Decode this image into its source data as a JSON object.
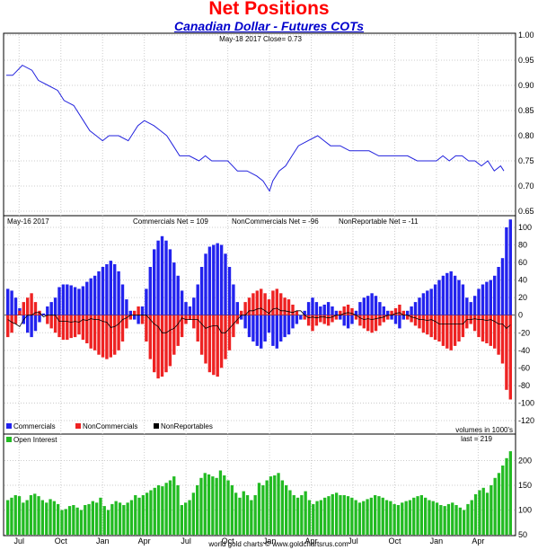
{
  "header": {
    "title": "Net Positions",
    "subtitle": "Canadian Dollar - Futures COTs"
  },
  "footer": {
    "credit": "world gold charts © www.goldchartsrus.com"
  },
  "colors": {
    "price_line": "#2222dd",
    "commercials": "#2222ee",
    "noncommercials": "#ee2222",
    "nonreportables": "#000000",
    "open_interest": "#22bb22",
    "title": "#ff0000",
    "subtitle": "#0000cc"
  },
  "chart_data": [
    {
      "type": "line",
      "panel": "price",
      "annotation": "May-18  2017   Close= 0.73",
      "y_ticks": [
        "1.00",
        "0.95",
        "0.90",
        "0.85",
        "0.80",
        "0.75",
        "0.70",
        "0.65"
      ],
      "ylim": [
        0.65,
        1.0
      ],
      "x_ticks": [
        "Jul",
        "Oct",
        "Jan",
        "Apr",
        "Jul",
        "Oct",
        "Jan",
        "Apr",
        "Jul",
        "Oct",
        "Jan",
        "Apr"
      ],
      "x_tick_weeks": [
        4,
        17,
        30,
        43,
        56,
        69,
        82,
        95,
        108,
        121,
        134,
        147
      ],
      "series": [
        {
          "weeks": [
            0,
            2,
            5,
            8,
            10,
            13,
            16,
            18,
            21,
            24,
            26,
            28,
            30,
            32,
            35,
            38,
            41,
            43,
            46,
            48,
            50,
            52,
            54,
            57,
            60,
            62,
            64,
            66,
            69,
            72,
            75,
            78,
            80,
            82,
            83,
            85,
            87,
            89,
            91,
            94,
            97,
            99,
            101,
            104,
            107,
            110,
            113,
            116,
            119,
            122,
            125,
            128,
            131,
            134,
            136,
            138,
            140,
            142,
            144,
            146,
            148,
            150,
            152,
            154,
            155
          ],
          "values": [
            0.92,
            0.92,
            0.94,
            0.93,
            0.91,
            0.9,
            0.89,
            0.87,
            0.86,
            0.83,
            0.81,
            0.8,
            0.79,
            0.8,
            0.8,
            0.79,
            0.82,
            0.83,
            0.82,
            0.81,
            0.8,
            0.78,
            0.76,
            0.76,
            0.75,
            0.76,
            0.75,
            0.75,
            0.75,
            0.73,
            0.73,
            0.72,
            0.71,
            0.69,
            0.71,
            0.73,
            0.74,
            0.76,
            0.78,
            0.79,
            0.8,
            0.79,
            0.78,
            0.78,
            0.77,
            0.77,
            0.77,
            0.76,
            0.76,
            0.76,
            0.76,
            0.75,
            0.75,
            0.75,
            0.76,
            0.75,
            0.76,
            0.76,
            0.75,
            0.75,
            0.74,
            0.75,
            0.73,
            0.74,
            0.73
          ]
        }
      ]
    },
    {
      "type": "bar",
      "panel": "net_positions",
      "left_label": "May-16  2017",
      "stats": [
        "Commercials Net = 109",
        "NonCommercials Net = -96",
        "NonReportable Net = -11"
      ],
      "y_ticks": [
        "100",
        "80",
        "60",
        "40",
        "20",
        "0",
        "-20",
        "-40",
        "-60",
        "-80",
        "-100",
        "-120"
      ],
      "ylim": [
        -120,
        100
      ],
      "legend": [
        "Commercials",
        "NonCommercials",
        "NonReportables"
      ],
      "volume_note": "volumes in 1000's",
      "series": [
        {
          "name": "Commercials",
          "values": [
            30,
            28,
            20,
            8,
            -10,
            -20,
            -25,
            -18,
            -8,
            2,
            10,
            15,
            20,
            32,
            35,
            35,
            34,
            32,
            30,
            33,
            38,
            42,
            45,
            50,
            55,
            58,
            62,
            58,
            50,
            35,
            18,
            5,
            -5,
            -10,
            10,
            30,
            55,
            75,
            85,
            90,
            85,
            75,
            60,
            45,
            28,
            15,
            10,
            20,
            35,
            55,
            70,
            78,
            80,
            82,
            80,
            70,
            55,
            35,
            15,
            -5,
            -15,
            -25,
            -30,
            -35,
            -38,
            -30,
            -20,
            -35,
            -38,
            -30,
            -25,
            -22,
            -15,
            -10,
            -5,
            5,
            15,
            20,
            15,
            10,
            12,
            15,
            10,
            5,
            -5,
            -12,
            -15,
            -10,
            5,
            15,
            20,
            22,
            25,
            22,
            15,
            10,
            5,
            -5,
            -10,
            -15,
            -5,
            5,
            10,
            15,
            20,
            25,
            28,
            30,
            35,
            40,
            45,
            48,
            50,
            45,
            40,
            35,
            20,
            15,
            22,
            30,
            35,
            38,
            40,
            45,
            55,
            65,
            100,
            109
          ]
        },
        {
          "name": "NonCommercials",
          "values": [
            -25,
            -20,
            -10,
            5,
            15,
            20,
            25,
            15,
            5,
            0,
            -10,
            -15,
            -20,
            -25,
            -28,
            -28,
            -26,
            -25,
            -22,
            -28,
            -32,
            -38,
            -40,
            -45,
            -48,
            -50,
            -48,
            -45,
            -40,
            -30,
            -15,
            -5,
            5,
            10,
            -10,
            -30,
            -50,
            -65,
            -72,
            -70,
            -65,
            -58,
            -45,
            -35,
            -25,
            -10,
            -5,
            -15,
            -30,
            -45,
            -55,
            -65,
            -68,
            -70,
            -60,
            -50,
            -40,
            -25,
            -10,
            5,
            15,
            20,
            25,
            28,
            30,
            25,
            18,
            28,
            30,
            25,
            20,
            18,
            12,
            5,
            0,
            -5,
            -12,
            -18,
            -12,
            -8,
            -10,
            -12,
            -8,
            -5,
            5,
            10,
            12,
            8,
            -5,
            -12,
            -15,
            -18,
            -20,
            -18,
            -12,
            -8,
            -5,
            5,
            8,
            12,
            5,
            -5,
            -8,
            -12,
            -15,
            -20,
            -22,
            -25,
            -28,
            -30,
            -35,
            -38,
            -40,
            -35,
            -30,
            -25,
            -15,
            -10,
            -18,
            -25,
            -30,
            -32,
            -35,
            -38,
            -45,
            -55,
            -85,
            -96
          ]
        },
        {
          "name": "NonReportables",
          "values": [
            -5,
            -8,
            -10,
            -13,
            -5,
            0,
            0,
            3,
            3,
            -2,
            0,
            0,
            0,
            -7,
            -7,
            -7,
            -8,
            -7,
            -8,
            -5,
            -6,
            -4,
            -5,
            -5,
            -7,
            -8,
            -14,
            -13,
            -10,
            -5,
            -3,
            0,
            0,
            0,
            0,
            0,
            -5,
            -10,
            -13,
            -20,
            -20,
            -17,
            -15,
            -10,
            -3,
            -5,
            -5,
            -5,
            -5,
            -10,
            -15,
            -13,
            -12,
            -12,
            -20,
            -20,
            -15,
            -10,
            -5,
            0,
            0,
            5,
            5,
            7,
            8,
            5,
            2,
            7,
            8,
            5,
            5,
            4,
            3,
            5,
            5,
            0,
            -3,
            -2,
            -3,
            -2,
            -2,
            -3,
            -2,
            0,
            0,
            2,
            3,
            2,
            0,
            -3,
            -5,
            -4,
            -5,
            -4,
            -3,
            -2,
            0,
            0,
            2,
            3,
            0,
            0,
            -2,
            -3,
            -5,
            -5,
            -6,
            -5,
            -7,
            -10,
            -10,
            -10,
            -10,
            -10,
            -10,
            -10,
            -5,
            -5,
            -4,
            -5,
            -5,
            -6,
            -5,
            -7,
            -10,
            -10,
            -15,
            -11
          ]
        }
      ]
    },
    {
      "type": "bar",
      "panel": "open_interest",
      "legend": [
        "Open Interest"
      ],
      "last_note": "last = 219",
      "y_ticks": [
        "200",
        "150",
        "100",
        "50"
      ],
      "ylim": [
        50,
        230
      ],
      "x_ticks": [
        "Jul",
        "Oct",
        "Jan",
        "Apr",
        "Jul",
        "Oct",
        "Jan",
        "Apr",
        "Jul",
        "Oct",
        "Jan",
        "Apr"
      ],
      "series": [
        {
          "name": "Open Interest",
          "values": [
            120,
            125,
            130,
            128,
            115,
            120,
            130,
            133,
            128,
            120,
            115,
            122,
            118,
            112,
            100,
            102,
            108,
            110,
            105,
            100,
            110,
            112,
            118,
            115,
            125,
            108,
            100,
            112,
            118,
            115,
            110,
            115,
            120,
            130,
            125,
            130,
            135,
            140,
            145,
            150,
            148,
            155,
            160,
            168,
            150,
            110,
            115,
            120,
            135,
            150,
            165,
            175,
            172,
            168,
            165,
            180,
            170,
            160,
            150,
            135,
            125,
            138,
            130,
            120,
            130,
            155,
            150,
            160,
            168,
            170,
            175,
            160,
            150,
            140,
            130,
            125,
            130,
            138,
            120,
            112,
            118,
            120,
            125,
            128,
            132,
            135,
            130,
            130,
            128,
            125,
            120,
            115,
            118,
            122,
            125,
            130,
            128,
            125,
            120,
            118,
            112,
            110,
            115,
            118,
            120,
            125,
            128,
            130,
            125,
            120,
            118,
            115,
            110,
            108,
            112,
            115,
            110,
            105,
            100,
            112,
            120,
            132,
            140,
            145,
            135,
            150,
            165,
            175,
            190,
            205,
            219
          ]
        }
      ],
      "footer": "world gold charts © www.goldchartsrus.com"
    }
  ]
}
